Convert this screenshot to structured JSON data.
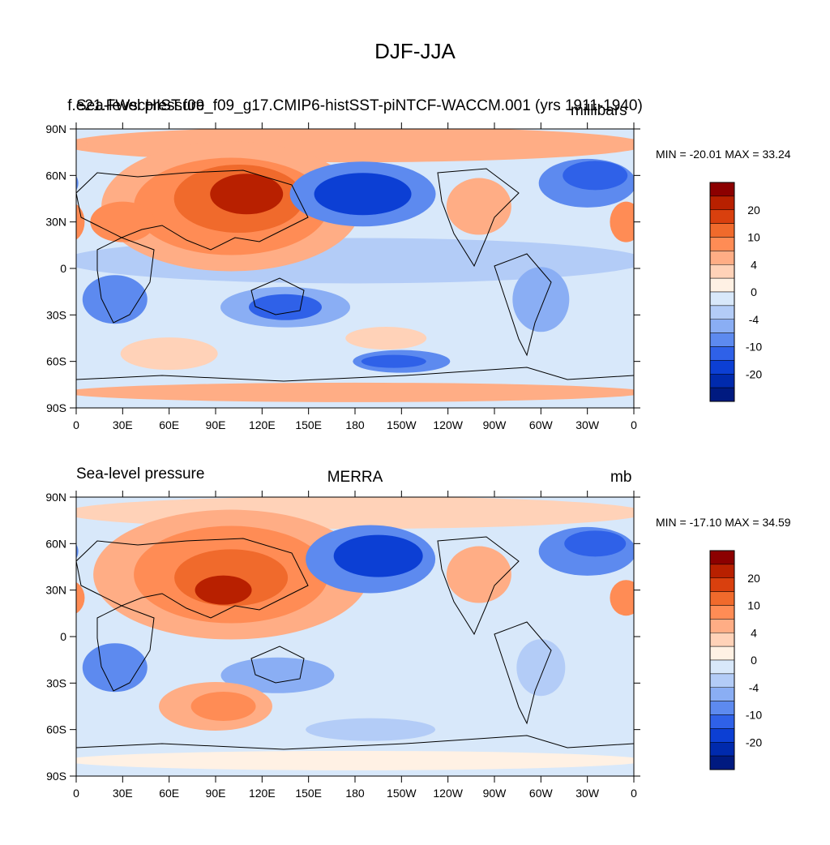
{
  "main_title": "DJF-JJA",
  "colors": {
    "levels": [
      "#8c0000",
      "#b82000",
      "#d9400e",
      "#f06a2c",
      "#ff8c55",
      "#ffad85",
      "#ffd2b8",
      "#fff1e4",
      "#d8e8fa",
      "#b3ccf7",
      "#8aaef4",
      "#5d8aef",
      "#2f61e8",
      "#0c3fd4",
      "#002aad",
      "#001a80"
    ]
  },
  "panels": [
    {
      "left_title": "Sea-level pressure",
      "center_title": "f.e21.FWscHIST.f09_f09_g17.CMIP6-histSST-piNTCF-WACCM.001 (yrs 1911-1940)",
      "right_title": "millibars",
      "min_max": "MIN = -20.01 MAX =  33.24"
    },
    {
      "left_title": "Sea-level pressure",
      "center_title": "MERRA",
      "right_title": "mb",
      "min_max": "MIN = -17.10 MAX =  34.59"
    }
  ],
  "axes": {
    "y_ticks": [
      "90N",
      "60N",
      "30N",
      "0",
      "30S",
      "60S",
      "90S"
    ],
    "x_ticks": [
      "0",
      "30E",
      "60E",
      "90E",
      "120E",
      "150E",
      "180",
      "150W",
      "120W",
      "90W",
      "60W",
      "30W",
      "0"
    ]
  },
  "colorbar": {
    "labels": [
      "20",
      "10",
      "4",
      "0",
      "-4",
      "-10",
      "-20"
    ]
  }
}
